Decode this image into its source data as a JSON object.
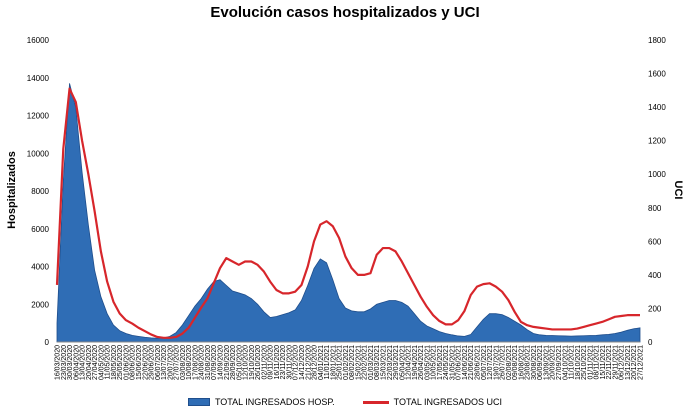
{
  "chart_data": {
    "type": "area",
    "title": "Evolución casos hospitalizados y UCI",
    "ylabel_left": "Hospitalizados",
    "ylabel_right": "UCI",
    "ylim_left": [
      0,
      16000
    ],
    "ylim_right": [
      0,
      1800
    ],
    "yticks_left": [
      "0",
      "2000",
      "4000",
      "6000",
      "8000",
      "10000",
      "12000",
      "14000",
      "16000"
    ],
    "yticks_right": [
      "0",
      "200",
      "400",
      "600",
      "800",
      "1000",
      "1200",
      "1400",
      "1600",
      "1800"
    ],
    "grid": false,
    "legend_position": "bottom",
    "x": [
      "16/03/2020",
      "23/03/2020",
      "30/03/2020",
      "06/04/2020",
      "13/04/2020",
      "20/04/2020",
      "27/04/2020",
      "04/05/2020",
      "11/05/2020",
      "18/05/2020",
      "25/05/2020",
      "01/06/2020",
      "08/06/2020",
      "15/06/2020",
      "22/06/2020",
      "29/06/2020",
      "06/07/2020",
      "13/07/2020",
      "20/07/2020",
      "27/07/2020",
      "03/08/2020",
      "10/08/2020",
      "17/08/2020",
      "24/08/2020",
      "31/08/2020",
      "07/09/2020",
      "14/09/2020",
      "21/09/2020",
      "28/09/2020",
      "05/10/2020",
      "12/10/2020",
      "19/10/2020",
      "26/10/2020",
      "02/11/2020",
      "09/11/2020",
      "16/11/2020",
      "23/11/2020",
      "30/11/2020",
      "07/12/2020",
      "14/12/2020",
      "21/12/2020",
      "28/12/2020",
      "04/01/2021",
      "11/01/2021",
      "18/01/2021",
      "25/01/2021",
      "01/02/2021",
      "08/02/2021",
      "15/02/2021",
      "22/02/2021",
      "01/03/2021",
      "08/03/2021",
      "15/03/2021",
      "22/03/2021",
      "29/03/2021",
      "05/04/2021",
      "12/04/2021",
      "19/04/2021",
      "26/04/2021",
      "03/05/2021",
      "10/05/2021",
      "17/05/2021",
      "24/05/2021",
      "31/05/2021",
      "07/06/2021",
      "14/06/2021",
      "21/06/2021",
      "28/06/2021",
      "05/07/2021",
      "12/07/2021",
      "19/07/2021",
      "26/07/2021",
      "02/08/2021",
      "09/08/2021",
      "16/08/2021",
      "23/08/2021",
      "30/08/2021",
      "06/09/2021",
      "13/09/2021",
      "20/09/2021",
      "27/09/2021",
      "04/10/2021",
      "11/10/2021",
      "18/10/2021",
      "25/10/2021",
      "01/11/2021",
      "08/11/2021",
      "15/11/2021",
      "22/11/2021",
      "29/11/2021",
      "06/12/2021",
      "13/12/2021",
      "20/12/2021",
      "27/12/2021"
    ],
    "series": [
      {
        "name": "TOTAL INGRESADOS HOSP.",
        "axis": "left",
        "color": "#2f6db5",
        "values": [
          1000,
          8500,
          13700,
          12400,
          9000,
          6200,
          3800,
          2400,
          1500,
          900,
          600,
          450,
          350,
          300,
          250,
          220,
          200,
          220,
          300,
          500,
          900,
          1400,
          1900,
          2300,
          2800,
          3200,
          3300,
          3000,
          2700,
          2600,
          2500,
          2300,
          2000,
          1600,
          1300,
          1350,
          1450,
          1550,
          1700,
          2200,
          3000,
          3900,
          4400,
          4200,
          3300,
          2300,
          1800,
          1650,
          1600,
          1600,
          1750,
          2000,
          2100,
          2200,
          2200,
          2100,
          1900,
          1500,
          1100,
          850,
          700,
          550,
          450,
          380,
          320,
          300,
          400,
          800,
          1200,
          1500,
          1500,
          1450,
          1300,
          1100,
          900,
          650,
          450,
          380,
          350,
          340,
          330,
          320,
          310,
          320,
          330,
          340,
          350,
          380,
          400,
          450,
          520,
          620,
          700,
          750
        ]
      },
      {
        "name": "TOTAL INGRESADOS UCI",
        "axis": "right",
        "color": "#d7262b",
        "values": [
          340,
          1150,
          1510,
          1430,
          1200,
          1000,
          780,
          540,
          360,
          240,
          170,
          130,
          110,
          85,
          65,
          45,
          30,
          25,
          25,
          30,
          50,
          85,
          145,
          205,
          260,
          350,
          440,
          500,
          480,
          460,
          480,
          480,
          460,
          420,
          360,
          310,
          290,
          290,
          300,
          340,
          450,
          600,
          700,
          720,
          690,
          620,
          510,
          440,
          400,
          400,
          410,
          520,
          560,
          560,
          540,
          480,
          410,
          340,
          270,
          210,
          160,
          125,
          105,
          105,
          130,
          185,
          280,
          330,
          345,
          350,
          330,
          300,
          250,
          180,
          120,
          100,
          90,
          85,
          80,
          75,
          75,
          75,
          75,
          80,
          90,
          100,
          110,
          120,
          135,
          150,
          155,
          160,
          160,
          160
        ]
      }
    ]
  },
  "legend": {
    "hosp": "TOTAL INGRESADOS HOSP.",
    "uci": "TOTAL INGRESADOS UCI"
  }
}
